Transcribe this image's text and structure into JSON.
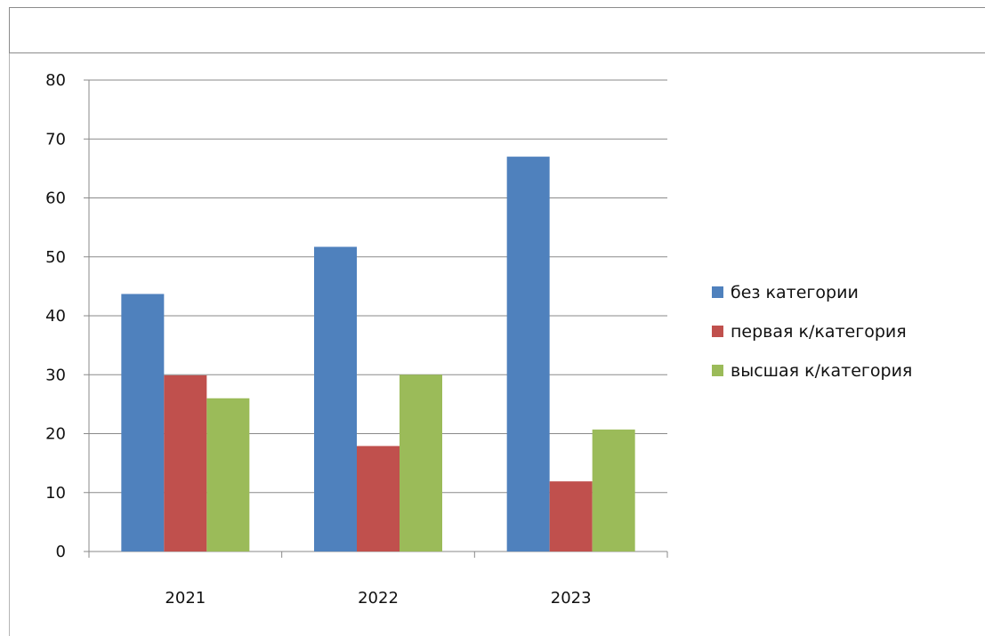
{
  "chart_data": {
    "type": "bar",
    "categories": [
      "2021",
      "2022",
      "2023"
    ],
    "series": [
      {
        "name": "без категории",
        "color": "#4f81bd",
        "values": [
          43.7,
          51.7,
          67
        ]
      },
      {
        "name": "первая к/категория",
        "color": "#c0504d",
        "values": [
          29.9,
          17.9,
          11.9
        ]
      },
      {
        "name": "высшая к/категория",
        "color": "#9bbb59",
        "values": [
          26,
          30,
          20.7
        ]
      }
    ],
    "title": "",
    "xlabel": "",
    "ylabel": "",
    "ylim": [
      0,
      80
    ],
    "yticks": [
      "0",
      "10",
      "20",
      "30",
      "40",
      "50",
      "60",
      "70",
      "80"
    ],
    "grid": true,
    "legend_position": "right"
  }
}
